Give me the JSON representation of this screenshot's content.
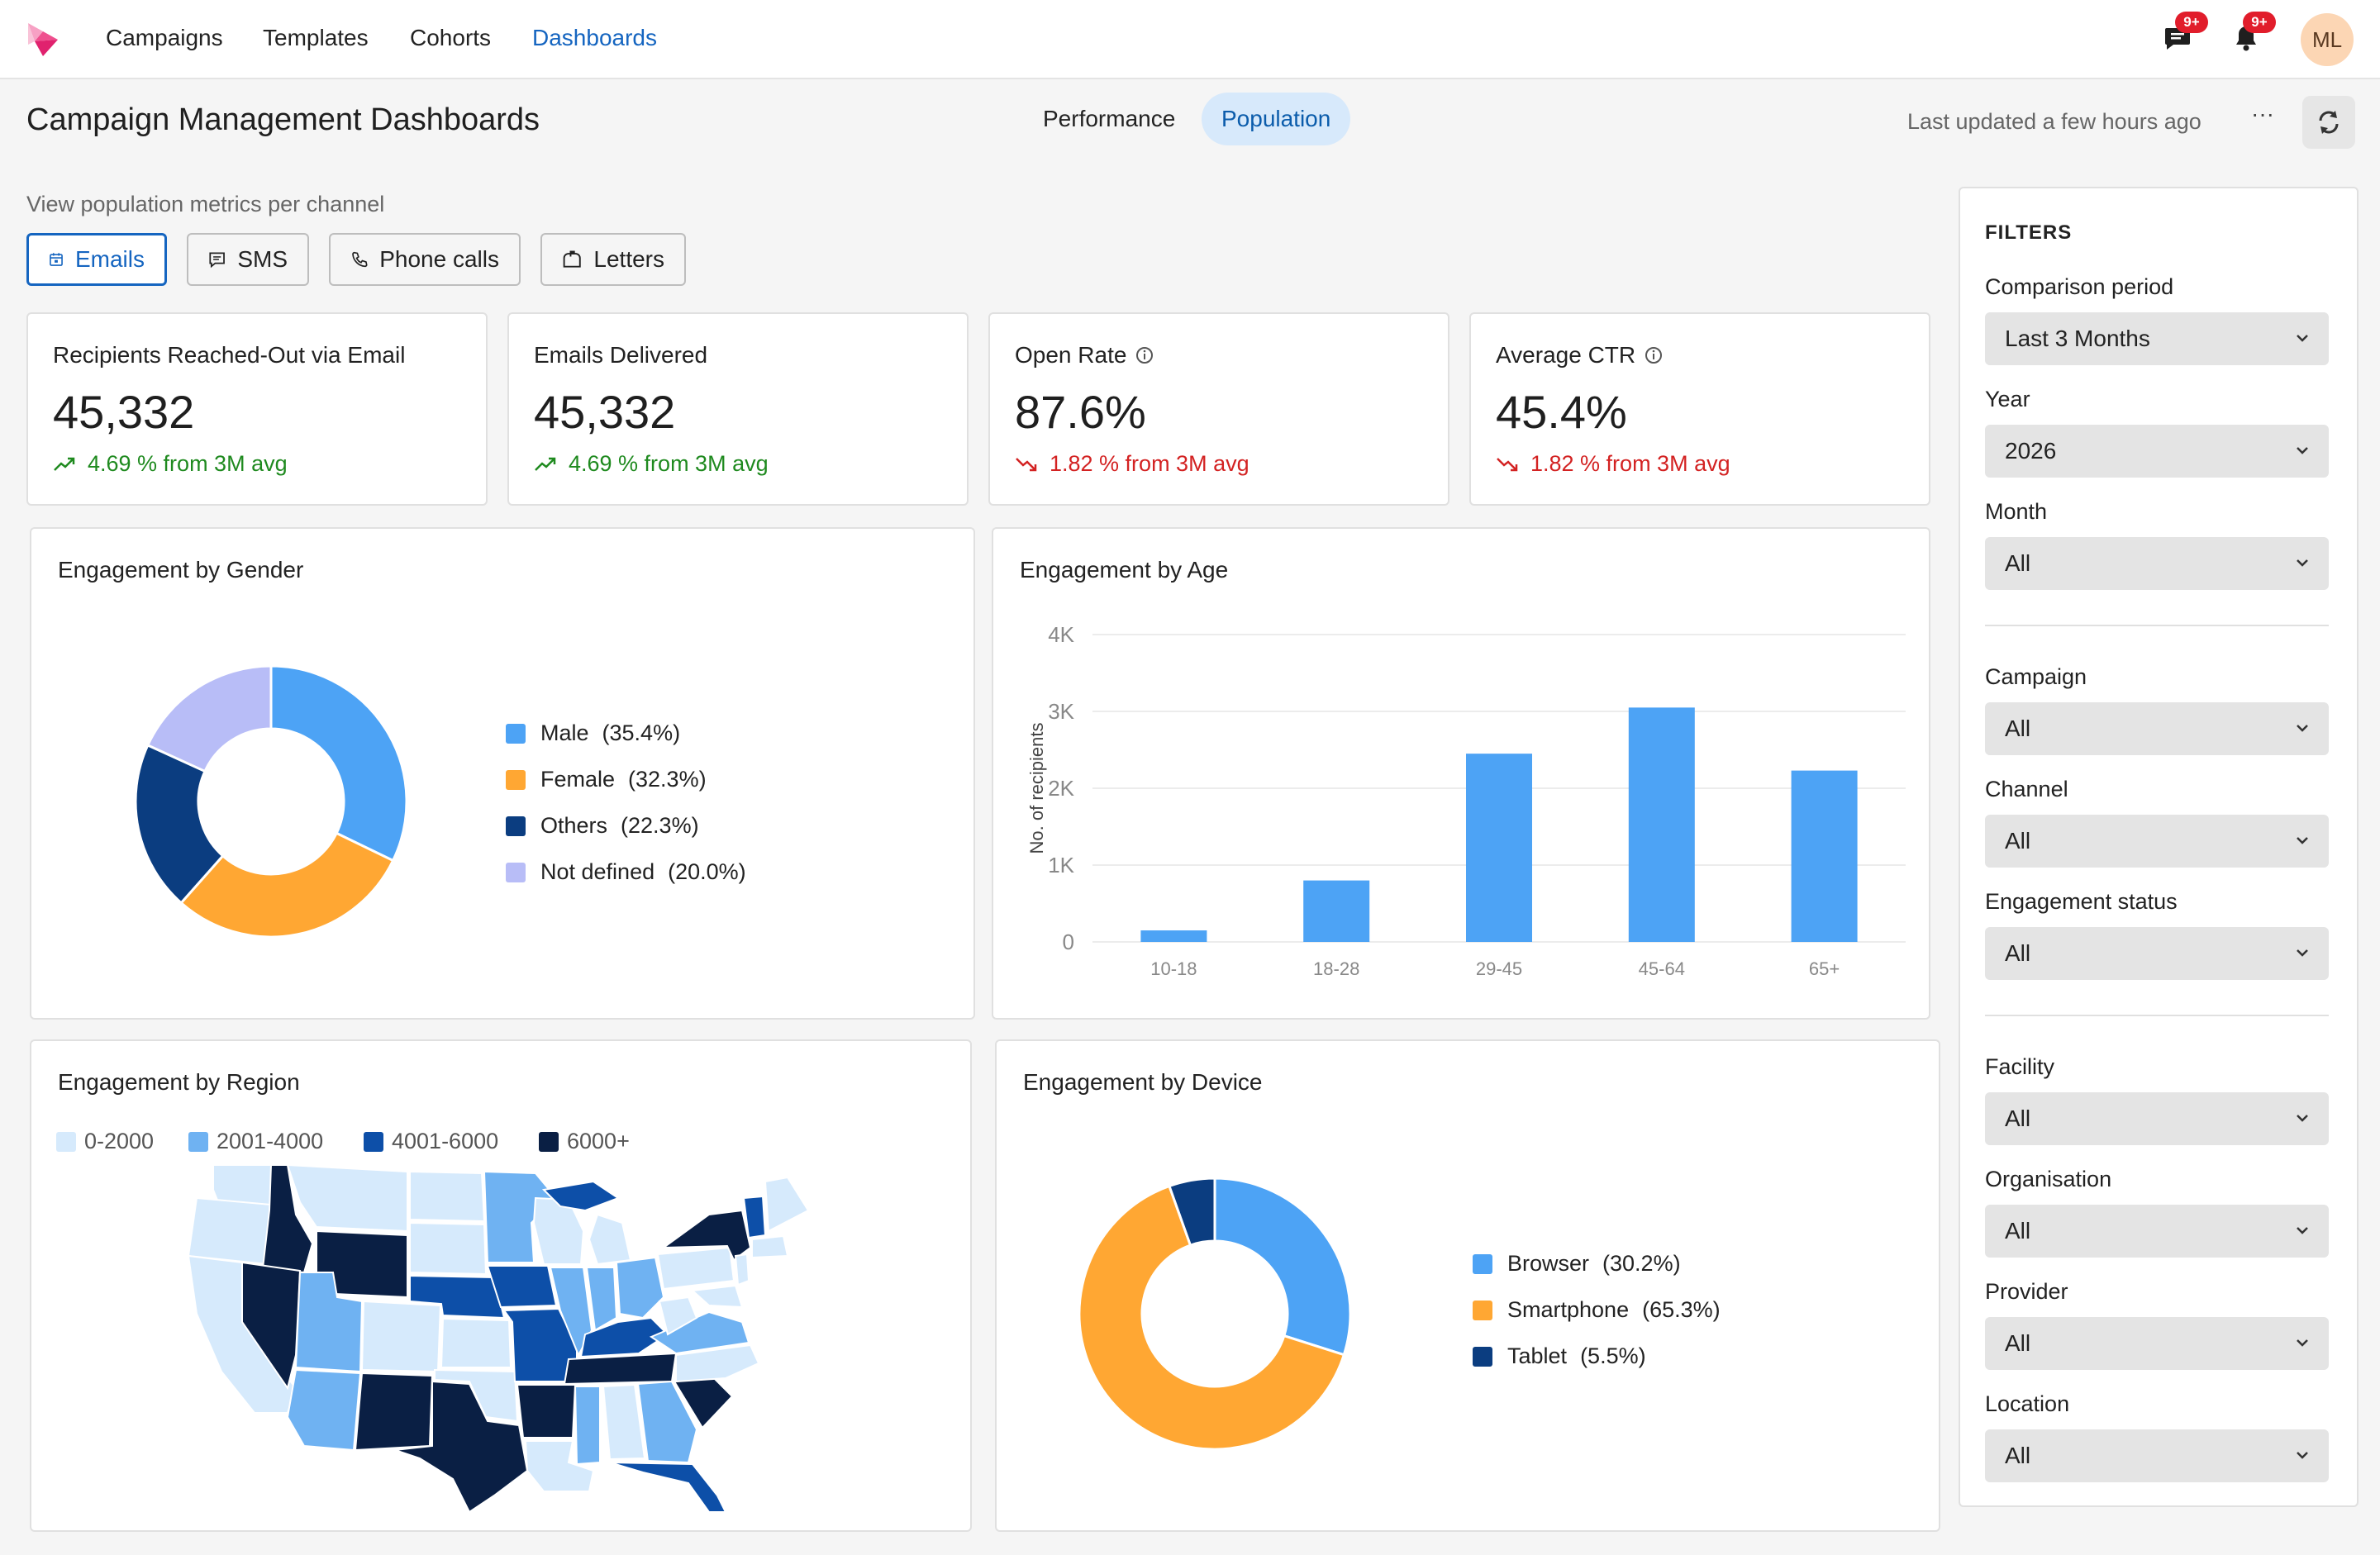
{
  "nav": {
    "items": [
      {
        "label": "Campaigns",
        "active": false
      },
      {
        "label": "Templates",
        "active": false
      },
      {
        "label": "Cohorts",
        "active": false
      },
      {
        "label": "Dashboards",
        "active": true
      }
    ],
    "messages_badge": "9+",
    "notifications_badge": "9+",
    "avatar_initials": "ML"
  },
  "header": {
    "title": "Campaign Management Dashboards",
    "tabs": [
      {
        "label": "Performance",
        "active": false
      },
      {
        "label": "Population",
        "active": true
      }
    ],
    "last_updated": "Last updated a few hours ago",
    "more_label": "···"
  },
  "subtitle": "View population metrics per channel",
  "channels": [
    {
      "label": "Emails",
      "icon": "calendar-icon",
      "active": true
    },
    {
      "label": "SMS",
      "icon": "message-icon",
      "active": false
    },
    {
      "label": "Phone calls",
      "icon": "phone-icon",
      "active": false
    },
    {
      "label": "Letters",
      "icon": "mailbox-icon",
      "active": false
    }
  ],
  "kpis": [
    {
      "label": "Recipients Reached-Out via Email",
      "value": "45,332",
      "change": "4.69 % from 3M avg",
      "trend": "up",
      "info": false
    },
    {
      "label": "Emails Delivered",
      "value": "45,332",
      "change": "4.69 % from 3M avg",
      "trend": "up",
      "info": false
    },
    {
      "label": "Open Rate",
      "value": "87.6%",
      "change": "1.82 % from 3M avg",
      "trend": "down",
      "info": true
    },
    {
      "label": "Average CTR",
      "value": "45.4%",
      "change": "1.82 % from 3M avg",
      "trend": "down",
      "info": true
    }
  ],
  "chart_data": [
    {
      "type": "pie",
      "title": "Engagement by Gender",
      "categories": [
        "Male",
        "Female",
        "Others",
        "Not defined"
      ],
      "values": [
        35.4,
        32.3,
        22.3,
        20.0
      ],
      "labels": [
        "(35.4%)",
        "(32.3%)",
        "(22.3%)",
        "(20.0%)"
      ],
      "colors": [
        "#4da3f5",
        "#ffa733",
        "#0b3d80",
        "#b8bdf7"
      ],
      "donut": true,
      "legend": "right"
    },
    {
      "type": "bar",
      "title": "Engagement by Age",
      "categories": [
        "10-18",
        "18-28",
        "29-45",
        "45-64",
        "65+"
      ],
      "values": [
        150,
        800,
        2450,
        3050,
        2230
      ],
      "ylabel": "No. of recipients",
      "ylim": [
        0,
        4000
      ],
      "yticks": [
        0,
        1000,
        2000,
        3000,
        4000
      ],
      "yticklabels": [
        "0",
        "1K",
        "2K",
        "3K",
        "4K"
      ],
      "color": "#4da3f5",
      "grid": true
    },
    {
      "type": "pie",
      "title": "Engagement by Device",
      "categories": [
        "Browser",
        "Smartphone",
        "Tablet"
      ],
      "values": [
        30.2,
        65.3,
        5.5
      ],
      "labels": [
        "(30.2%)",
        "(65.3%)",
        "(5.5%)"
      ],
      "colors": [
        "#4da3f5",
        "#ffa733",
        "#0b3d80"
      ],
      "donut": true,
      "legend": "right"
    }
  ],
  "region_map": {
    "title": "Engagement by Region",
    "legend": [
      {
        "label": "0-2000",
        "color": "#d6eafc"
      },
      {
        "label": "2001-4000",
        "color": "#6fb2f2"
      },
      {
        "label": "4001-6000",
        "color": "#0d4fa8"
      },
      {
        "label": "6000+",
        "color": "#0a1f44"
      }
    ]
  },
  "filters": {
    "title": "FILTERS",
    "fields": [
      {
        "label": "Comparison period",
        "value": "Last 3 Months"
      },
      {
        "label": "Year",
        "value": "2026"
      },
      {
        "label": "Month",
        "value": "All"
      },
      {
        "label": "Campaign",
        "value": "All"
      },
      {
        "label": "Channel",
        "value": "All"
      },
      {
        "label": "Engagement status",
        "value": "All"
      },
      {
        "label": "Facility",
        "value": "All"
      },
      {
        "label": "Organisation",
        "value": "All"
      },
      {
        "label": "Provider",
        "value": "All"
      },
      {
        "label": "Location",
        "value": "All"
      }
    ]
  }
}
